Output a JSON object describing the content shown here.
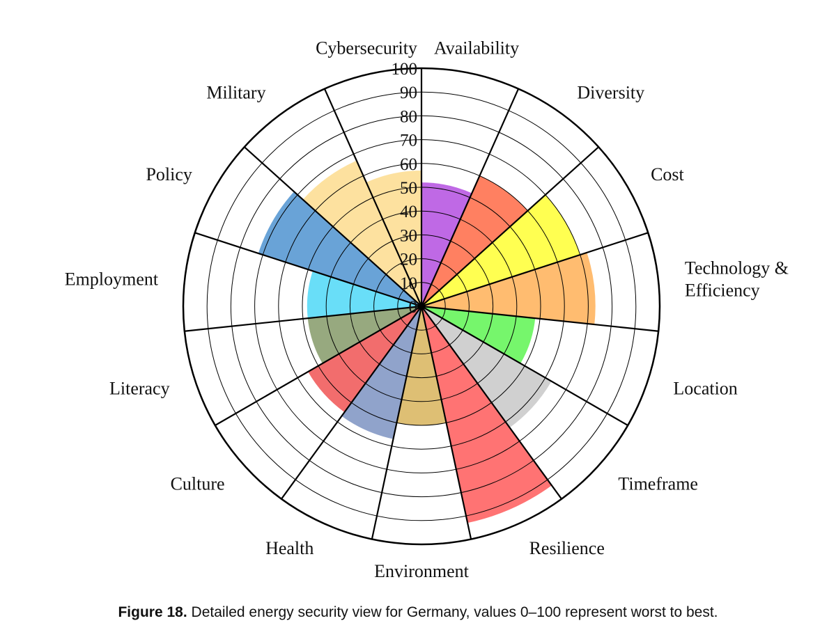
{
  "chart_data": {
    "type": "polar-area",
    "rlim": [
      0,
      100
    ],
    "r_ticks": [
      "0",
      "10",
      "20",
      "30",
      "40",
      "50",
      "60",
      "70",
      "80",
      "90",
      "100"
    ],
    "categories": [
      "Availability",
      "Diversity",
      "Cost",
      "Technology & Efficiency",
      "Location",
      "Timeframe",
      "Resilience",
      "Environment",
      "Health",
      "Culture",
      "Literacy",
      "Employment",
      "Policy",
      "Military",
      "Cybersecurity"
    ],
    "values": [
      52,
      60,
      70,
      73,
      48,
      63,
      93,
      50,
      57,
      55,
      48,
      48,
      72,
      67,
      57
    ],
    "colors": [
      "#b44fe0",
      "#ff6a45",
      "#ffff33",
      "#ffb057",
      "#5ef552",
      "#c8c8c8",
      "#ff5a5a",
      "#d8b45c",
      "#7c93c2",
      "#f05454",
      "#859a68",
      "#4fd8f7",
      "#4f93d0",
      "#fddc8e",
      "#fddc8e"
    ],
    "grid": true
  },
  "caption": {
    "label": "Figure 18.",
    "text": "Detailed energy security view for Germany, values 0–100 represent worst to best."
  }
}
